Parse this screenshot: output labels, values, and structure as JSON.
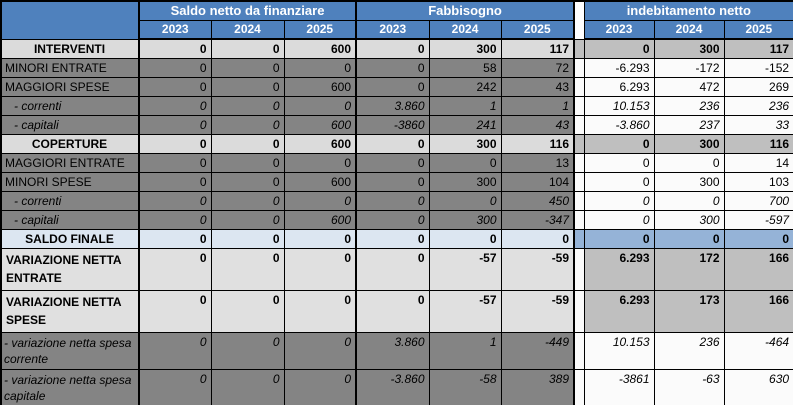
{
  "colors": {
    "header_blue": "#4F81BD",
    "header_text": "#FFFFFF",
    "row_light_gray": "#DBDBDB",
    "row_dark_gray": "#848484",
    "right_gray": "#BFBFBF",
    "right_white": "#FBFBFB",
    "saldo_light_blue": "#DCE6F1",
    "saldo_mid_blue": "#95B3D7",
    "net_light_gray": "#E0E0E0",
    "grid_border": "#000000"
  },
  "table": {
    "groups": [
      {
        "label": "Saldo netto da finanziare",
        "years": [
          "2023",
          "2024",
          "2025"
        ]
      },
      {
        "label": "Fabbisogno",
        "years": [
          "2023",
          "2024",
          "2025"
        ]
      },
      {
        "label": "indebitamento netto",
        "years": [
          "2023",
          "2024",
          "2025"
        ]
      }
    ],
    "rows": [
      {
        "label": "INTERVENTI",
        "style": "total",
        "values": [
          "0",
          "0",
          "600",
          "0",
          "300",
          "117",
          "0",
          "300",
          "117"
        ]
      },
      {
        "label": "MINORI ENTRATE",
        "style": "plain",
        "values": [
          "0",
          "0",
          "0",
          "0",
          "58",
          "72",
          "-6.293",
          "-172",
          "-152"
        ]
      },
      {
        "label": "MAGGIORI SPESE",
        "style": "plain",
        "values": [
          "0",
          "0",
          "600",
          "0",
          "242",
          "43",
          "6.293",
          "472",
          "269"
        ]
      },
      {
        "label": "- correnti",
        "style": "sub",
        "values": [
          "0",
          "0",
          "0",
          "3.860",
          "1",
          "1",
          "10.153",
          "236",
          "236"
        ]
      },
      {
        "label": "- capitali",
        "style": "sub",
        "values": [
          "0",
          "0",
          "600",
          "-3860",
          "241",
          "43",
          "-3.860",
          "237",
          "33"
        ]
      },
      {
        "label": "COPERTURE",
        "style": "total",
        "values": [
          "0",
          "0",
          "600",
          "0",
          "300",
          "116",
          "0",
          "300",
          "116"
        ]
      },
      {
        "label": "MAGGIORI ENTRATE",
        "style": "plain",
        "values": [
          "0",
          "0",
          "0",
          "0",
          "0",
          "13",
          "0",
          "0",
          "14"
        ]
      },
      {
        "label": "MINORI SPESE",
        "style": "plain",
        "values": [
          "0",
          "0",
          "600",
          "0",
          "300",
          "104",
          "0",
          "300",
          "103"
        ]
      },
      {
        "label": "- correnti",
        "style": "sub",
        "values": [
          "0",
          "0",
          "0",
          "0",
          "0",
          "450",
          "0",
          "0",
          "700"
        ]
      },
      {
        "label": "- capitali",
        "style": "sub",
        "values": [
          "0",
          "0",
          "600",
          "0",
          "300",
          "-347",
          "0",
          "300",
          "-597"
        ]
      },
      {
        "label": "SALDO FINALE",
        "style": "saldo",
        "values": [
          "0",
          "0",
          "0",
          "0",
          "0",
          "0",
          "0",
          "0",
          "0"
        ]
      },
      {
        "label": "VARIAZIONE NETTA ENTRATE",
        "style": "net",
        "values": [
          "0",
          "0",
          "0",
          "0",
          "-57",
          "-59",
          "6.293",
          "172",
          "166"
        ]
      },
      {
        "label": "VARIAZIONE NETTA SPESE",
        "style": "net",
        "values": [
          "0",
          "0",
          "0",
          "0",
          "-57",
          "-59",
          "6.293",
          "173",
          "166"
        ]
      },
      {
        "label": "- variazione netta spesa corrente",
        "style": "netsub",
        "values": [
          "0",
          "0",
          "0",
          "3.860",
          "1",
          "-449",
          "10.153",
          "236",
          "-464"
        ]
      },
      {
        "label": "- variazione netta spesa capitale",
        "style": "netsub",
        "values": [
          "0",
          "0",
          "0",
          "-3.860",
          "-58",
          "389",
          "-3861",
          "-63",
          "630"
        ]
      }
    ]
  }
}
